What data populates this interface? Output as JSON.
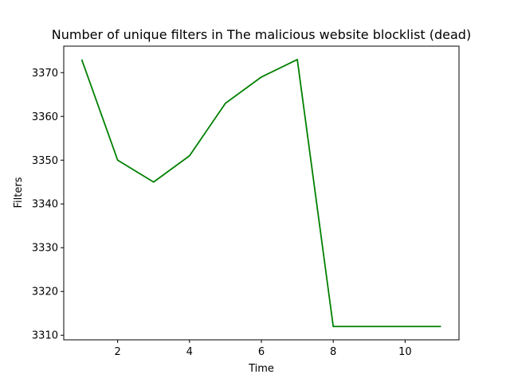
{
  "chart_data": {
    "type": "line",
    "title": "Number of unique filters in The malicious website blocklist (dead)",
    "xlabel": "Time",
    "ylabel": "Filters",
    "xlim": [
      0.5,
      11.5
    ],
    "ylim": [
      3308.95,
      3376.05
    ],
    "x_ticks": [
      2,
      4,
      6,
      8,
      10
    ],
    "y_ticks": [
      3310,
      3320,
      3330,
      3340,
      3350,
      3360,
      3370
    ],
    "grid": false,
    "series": [
      {
        "color": "#008000",
        "x": [
          1,
          2,
          3,
          4,
          5,
          6,
          7,
          8,
          9,
          10,
          11
        ],
        "y": [
          3373,
          3350,
          3345,
          3351,
          3363,
          3369,
          3373,
          3312,
          3312,
          3312,
          3312
        ]
      }
    ]
  }
}
